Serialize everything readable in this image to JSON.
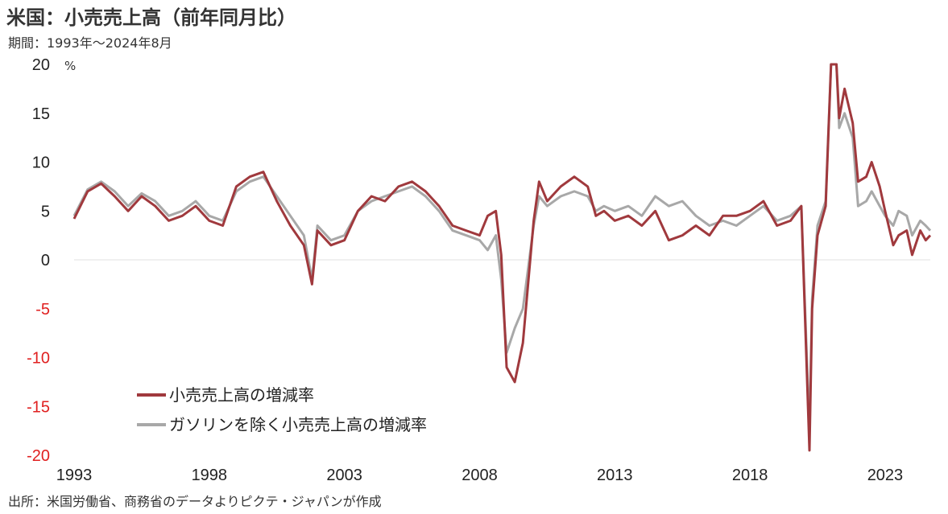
{
  "title": "米国：小売売上高（前年同月比）",
  "subtitle": "期間：1993年～2024年8月",
  "source": "出所：米国労働省、商務省のデータよりピクテ・ジャパンが作成",
  "colors": {
    "series1": "#a0393d",
    "series2": "#a8a8a8",
    "negative_tick": "#e02020",
    "zero_line": "#e0e0e0"
  },
  "chart_data": {
    "type": "line",
    "unit_label": "%",
    "ylim": [
      -20,
      20
    ],
    "yticks": [
      20,
      15,
      10,
      5,
      0,
      -5,
      -10,
      -15,
      -20
    ],
    "xlim": [
      1993.0,
      2024.67
    ],
    "xticks": [
      1993,
      1998,
      2003,
      2008,
      2013,
      2018,
      2023
    ],
    "grid": false,
    "legend_position": "lower-left",
    "series": [
      {
        "name": "小売売上高の増減率",
        "color": "#a0393d",
        "x": [
          1993.0,
          1993.5,
          1994.0,
          1994.5,
          1995.0,
          1995.5,
          1996.0,
          1996.5,
          1997.0,
          1997.5,
          1998.0,
          1998.5,
          1999.0,
          1999.5,
          2000.0,
          2000.5,
          2001.0,
          2001.5,
          2001.8,
          2002.0,
          2002.5,
          2003.0,
          2003.5,
          2004.0,
          2004.5,
          2005.0,
          2005.5,
          2006.0,
          2006.5,
          2007.0,
          2007.5,
          2008.0,
          2008.3,
          2008.6,
          2008.8,
          2009.0,
          2009.3,
          2009.6,
          2010.0,
          2010.2,
          2010.5,
          2011.0,
          2011.5,
          2012.0,
          2012.3,
          2012.6,
          2013.0,
          2013.5,
          2014.0,
          2014.5,
          2015.0,
          2015.5,
          2016.0,
          2016.5,
          2017.0,
          2017.5,
          2018.0,
          2018.5,
          2019.0,
          2019.5,
          2019.9,
          2020.2,
          2020.3,
          2020.5,
          2020.8,
          2021.0,
          2021.2,
          2021.3,
          2021.5,
          2021.8,
          2022.0,
          2022.3,
          2022.5,
          2022.8,
          2023.0,
          2023.3,
          2023.5,
          2023.8,
          2024.0,
          2024.3,
          2024.5,
          2024.67
        ],
        "values": [
          4.2,
          7.0,
          7.8,
          6.5,
          5.0,
          6.5,
          5.5,
          4.0,
          4.5,
          5.5,
          4.0,
          3.5,
          7.5,
          8.5,
          9.0,
          6.0,
          3.5,
          1.5,
          -2.5,
          3.0,
          1.5,
          2.0,
          5.0,
          6.5,
          6.0,
          7.5,
          8.0,
          7.0,
          5.5,
          3.5,
          3.0,
          2.5,
          4.5,
          5.0,
          0.5,
          -11.0,
          -12.5,
          -8.5,
          4.0,
          8.0,
          6.0,
          7.5,
          8.5,
          7.5,
          4.5,
          5.0,
          4.0,
          4.5,
          3.5,
          5.0,
          2.0,
          2.5,
          3.5,
          2.5,
          4.5,
          4.5,
          5.0,
          6.0,
          3.5,
          4.0,
          5.5,
          -19.5,
          -5.0,
          2.5,
          5.5,
          20.0,
          20.0,
          14.5,
          17.5,
          14.0,
          8.0,
          8.5,
          10.0,
          7.5,
          5.0,
          1.5,
          2.5,
          3.0,
          0.5,
          3.0,
          2.0,
          2.5
        ]
      },
      {
        "name": "ガソリンを除く小売売上高の増減率",
        "color": "#a8a8a8",
        "x": [
          1993.0,
          1993.5,
          1994.0,
          1994.5,
          1995.0,
          1995.5,
          1996.0,
          1996.5,
          1997.0,
          1997.5,
          1998.0,
          1998.5,
          1999.0,
          1999.5,
          2000.0,
          2000.5,
          2001.0,
          2001.5,
          2001.8,
          2002.0,
          2002.5,
          2003.0,
          2003.5,
          2004.0,
          2004.5,
          2005.0,
          2005.5,
          2006.0,
          2006.5,
          2007.0,
          2007.5,
          2008.0,
          2008.3,
          2008.6,
          2008.8,
          2009.0,
          2009.3,
          2009.6,
          2010.0,
          2010.2,
          2010.5,
          2011.0,
          2011.5,
          2012.0,
          2012.3,
          2012.6,
          2013.0,
          2013.5,
          2014.0,
          2014.5,
          2015.0,
          2015.5,
          2016.0,
          2016.5,
          2017.0,
          2017.5,
          2018.0,
          2018.5,
          2019.0,
          2019.5,
          2019.9,
          2020.2,
          2020.3,
          2020.5,
          2020.8,
          2021.0,
          2021.2,
          2021.3,
          2021.5,
          2021.8,
          2022.0,
          2022.3,
          2022.5,
          2022.8,
          2023.0,
          2023.3,
          2023.5,
          2023.8,
          2024.0,
          2024.3,
          2024.5,
          2024.67
        ],
        "values": [
          4.5,
          7.2,
          8.0,
          7.0,
          5.5,
          6.8,
          6.0,
          4.5,
          5.0,
          6.0,
          4.5,
          4.0,
          7.0,
          8.0,
          8.5,
          6.5,
          4.5,
          2.5,
          -2.0,
          3.5,
          2.0,
          2.5,
          5.0,
          6.0,
          6.5,
          7.0,
          7.5,
          6.5,
          5.0,
          3.0,
          2.5,
          2.0,
          1.0,
          2.5,
          -2.0,
          -9.5,
          -7.0,
          -5.0,
          3.5,
          6.5,
          5.5,
          6.5,
          7.0,
          6.5,
          5.0,
          5.5,
          5.0,
          5.5,
          4.5,
          6.5,
          5.5,
          6.0,
          4.5,
          3.5,
          4.0,
          3.5,
          4.5,
          5.5,
          4.0,
          4.5,
          5.5,
          -17.5,
          -4.0,
          3.5,
          6.0,
          20.0,
          20.0,
          13.5,
          15.0,
          12.5,
          5.5,
          6.0,
          7.0,
          5.5,
          4.5,
          3.5,
          5.0,
          4.5,
          2.5,
          4.0,
          3.5,
          3.0
        ]
      }
    ]
  }
}
